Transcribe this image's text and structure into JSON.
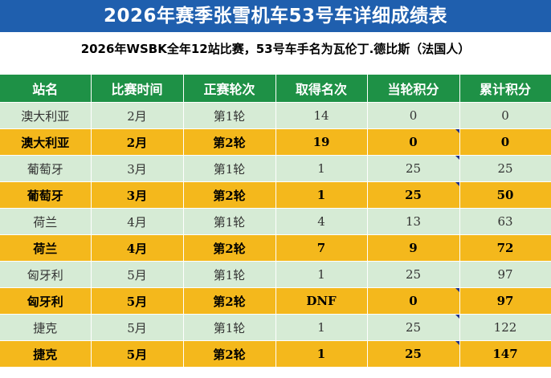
{
  "title": "2026年赛季张雪机车53号车详细成绩表",
  "subtitle": "2026年WSBK全年12站比赛，53号车手名为瓦伦丁.德比斯（法国人）",
  "columns": [
    "站名",
    "比赛时间",
    "正赛轮次",
    "取得名次",
    "当轮积分",
    "累计积分"
  ],
  "rows": [
    {
      "station": "澳大利亚",
      "month": "2月",
      "round": "第1轮",
      "rank": "14",
      "points": "0",
      "total": "0",
      "highlight": false,
      "mark_points": false,
      "mark_total": false
    },
    {
      "station": "澳大利亚",
      "month": "2月",
      "round": "第2轮",
      "rank": "19",
      "points": "0",
      "total": "0",
      "highlight": true,
      "mark_points": true,
      "mark_total": false
    },
    {
      "station": "葡萄牙",
      "month": "3月",
      "round": "第1轮",
      "rank": "1",
      "points": "25",
      "total": "25",
      "highlight": false,
      "mark_points": true,
      "mark_total": false
    },
    {
      "station": "葡萄牙",
      "month": "3月",
      "round": "第2轮",
      "rank": "1",
      "points": "25",
      "total": "50",
      "highlight": true,
      "mark_points": true,
      "mark_total": false
    },
    {
      "station": "荷兰",
      "month": "4月",
      "round": "第1轮",
      "rank": "4",
      "points": "13",
      "total": "63",
      "highlight": false,
      "mark_points": false,
      "mark_total": false
    },
    {
      "station": "荷兰",
      "month": "4月",
      "round": "第2轮",
      "rank": "7",
      "points": "9",
      "total": "72",
      "highlight": true,
      "mark_points": false,
      "mark_total": false
    },
    {
      "station": "匈牙利",
      "month": "5月",
      "round": "第1轮",
      "rank": "1",
      "points": "25",
      "total": "97",
      "highlight": false,
      "mark_points": false,
      "mark_total": false
    },
    {
      "station": "匈牙利",
      "month": "5月",
      "round": "第2轮",
      "rank": "DNF",
      "points": "0",
      "total": "97",
      "highlight": true,
      "mark_points": true,
      "mark_total": false
    },
    {
      "station": "捷克",
      "month": "5月",
      "round": "第1轮",
      "rank": "1",
      "points": "25",
      "total": "122",
      "highlight": false,
      "mark_points": true,
      "mark_total": false
    },
    {
      "station": "捷克",
      "month": "5月",
      "round": "第2轮",
      "rank": "1",
      "points": "25",
      "total": "147",
      "highlight": true,
      "mark_points": true,
      "mark_total": false
    }
  ],
  "colors": {
    "title_bg": "#1f5fae",
    "header_bg": "#1e9146",
    "round1_bg": "#d6ebd5",
    "round2_bg": "#f4b81c",
    "marker": "#1f2f8a"
  }
}
